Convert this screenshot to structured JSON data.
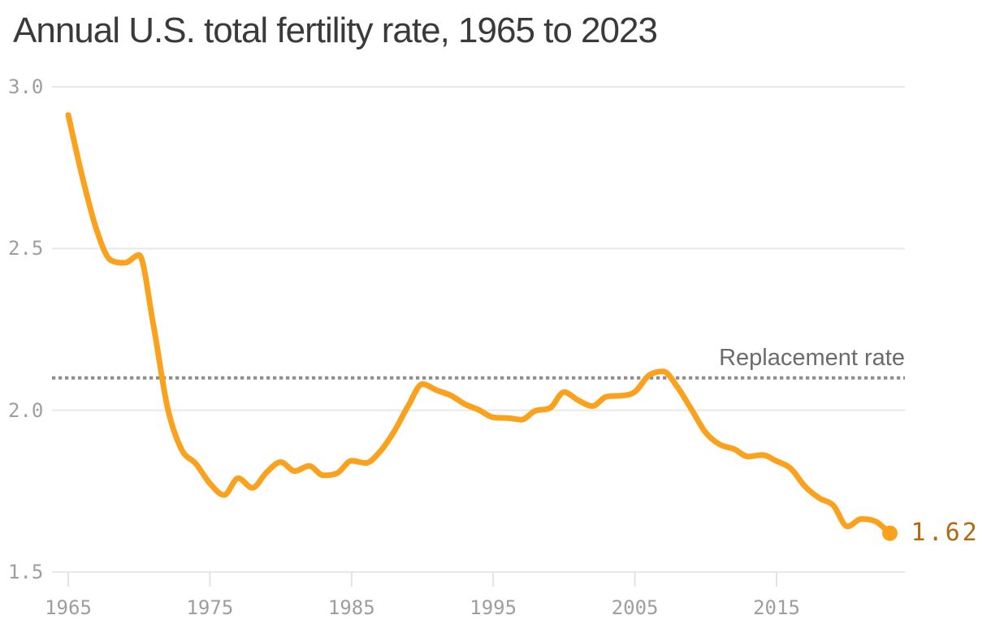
{
  "title": "Annual U.S. total fertility rate, 1965 to 2023",
  "colors": {
    "background": "#ffffff",
    "line": "#faa21e",
    "end_dot": "#faa21e",
    "end_label_text": "#b26a11",
    "replacement_line": "#8d8d8d",
    "replacement_text": "#6b6b6b",
    "grid": "#e8e8e8",
    "axis_tick": "#e3e3e3",
    "axis_text": "#9e9e9e",
    "title_text": "#3a3a3a"
  },
  "chart_data": {
    "type": "line",
    "title": "Annual U.S. total fertility rate, 1965 to 2023",
    "series_name": "U.S. total fertility rate",
    "x": [
      1965,
      1966,
      1967,
      1968,
      1969,
      1970,
      1971,
      1972,
      1973,
      1974,
      1975,
      1976,
      1977,
      1978,
      1979,
      1980,
      1981,
      1982,
      1983,
      1984,
      1985,
      1986,
      1987,
      1988,
      1989,
      1990,
      1991,
      1992,
      1993,
      1994,
      1995,
      1996,
      1997,
      1998,
      1999,
      2000,
      2001,
      2002,
      2003,
      2004,
      2005,
      2006,
      2007,
      2008,
      2009,
      2010,
      2011,
      2012,
      2013,
      2014,
      2015,
      2016,
      2017,
      2018,
      2019,
      2020,
      2021,
      2022,
      2023
    ],
    "values": [
      2.913,
      2.721,
      2.558,
      2.464,
      2.456,
      2.48,
      2.267,
      2.01,
      1.879,
      1.835,
      1.774,
      1.738,
      1.79,
      1.76,
      1.808,
      1.84,
      1.812,
      1.828,
      1.799,
      1.806,
      1.844,
      1.837,
      1.872,
      1.934,
      2.014,
      2.081,
      2.062,
      2.046,
      2.019,
      2.001,
      1.978,
      1.976,
      1.971,
      1.999,
      2.007,
      2.056,
      2.031,
      2.013,
      2.042,
      2.045,
      2.057,
      2.108,
      2.12,
      2.072,
      2.002,
      1.931,
      1.894,
      1.88,
      1.857,
      1.862,
      1.843,
      1.82,
      1.765,
      1.729,
      1.706,
      1.641,
      1.664,
      1.656,
      1.62
    ],
    "xlabel": "",
    "ylabel": "",
    "xlim": [
      1965,
      2023
    ],
    "ylim": [
      1.5,
      3.0
    ],
    "xticks": [
      1965,
      1975,
      1985,
      1995,
      2005,
      2015
    ],
    "ytick_labels": [
      "3.0",
      "2.5",
      "2.0",
      "1.5"
    ],
    "ytick_values": [
      3.0,
      2.5,
      2.0,
      1.5
    ],
    "grid": "horizontal",
    "legend": "none",
    "line_smoothing": "monotone",
    "annotations": {
      "replacement_line": {
        "label": "Replacement rate",
        "value": 2.1,
        "style": "dotted"
      },
      "end_point": {
        "x": 2023,
        "value": 1.62,
        "label": "1.62"
      }
    }
  }
}
